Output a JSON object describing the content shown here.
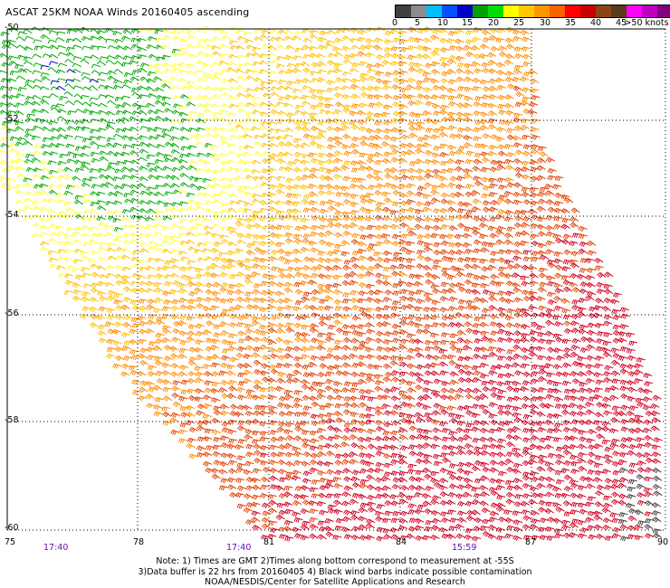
{
  "title": "ASCAT 25KM NOAA Winds 20160405 ascending",
  "scale": {
    "labels": [
      "0",
      "5",
      "10",
      "15",
      "20",
      "25",
      "30",
      "35",
      "40",
      "45",
      ">50 knots"
    ],
    "colors": [
      "#404040",
      "#8c8c8c",
      "#00bfff",
      "#0050ff",
      "#0000c8",
      "#00a000",
      "#00dd00",
      "#ffff00",
      "#ffc800",
      "#ff9600",
      "#ff6000",
      "#ff0000",
      "#c80000",
      "#8b4513",
      "#5a3a1a",
      "#ff00ff",
      "#c000c0",
      "#800080",
      "#4b0082"
    ]
  },
  "axes": {
    "lat_labels": [
      "-50",
      "-52",
      "-54",
      "-56",
      "-58",
      "-60"
    ],
    "lon_labels": [
      "75",
      "78",
      "81",
      "84",
      "87",
      "90"
    ]
  },
  "times": [
    "17:40",
    "17:40",
    "15:59"
  ],
  "notes": [
    "Note: 1) Times are GMT 2)Times along bottom correspond to measurement at -55S",
    "3)Data buffer is 22 hrs from 20160405 4) Black wind barbs indicate possible contamination",
    "NOAA/NESDIS/Center for Satellite Applications and Research"
  ],
  "map": {
    "lat_range": [
      -60,
      -50
    ],
    "lon_range": [
      75,
      90
    ],
    "grid": "dotted",
    "barb_colors": {
      "15-20": "#0000cc",
      "20-25": "#00aa00",
      "25-30": "#ffff33",
      "30-35": "#ffc000",
      "35-40": "#ff8c00",
      "40-45": "#e04000",
      "45-50": "#d00020",
      "contaminated": "#404040"
    }
  }
}
